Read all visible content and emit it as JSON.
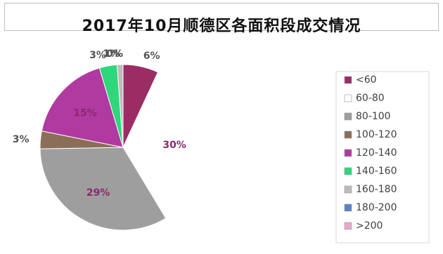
{
  "chart_data": {
    "type": "pie",
    "title": "2017年10月顺德区各面积段成交情况",
    "unit": "%",
    "categories": [
      "<60",
      "60-80",
      "80-100",
      "100-120",
      "120-140",
      "140-160",
      "160-180",
      "180-200",
      ">200"
    ],
    "values": [
      6,
      30,
      29,
      3,
      15,
      3,
      1,
      0,
      0
    ],
    "labels": [
      "6%",
      "30%",
      "29%",
      "3%",
      "15%",
      "3%",
      "1%",
      "0%",
      "0%"
    ],
    "colors": [
      "#9b2d64",
      "#ffffff",
      "#9e9e9e",
      "#8b6e58",
      "#b03aa0",
      "#2fd67a",
      "#bcbcbc",
      "#5b7fc4",
      "#e9a6cc"
    ],
    "legend": "right"
  }
}
